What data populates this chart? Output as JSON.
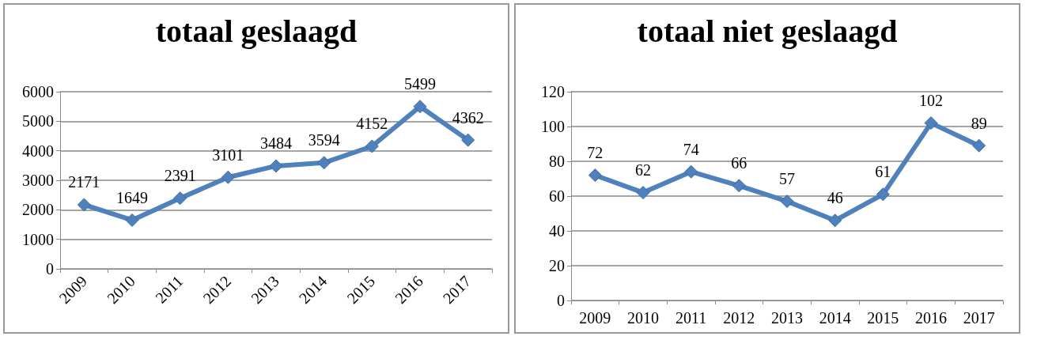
{
  "chart_data": [
    {
      "type": "line",
      "title": "totaal geslaagd",
      "categories": [
        "2009",
        "2010",
        "2011",
        "2012",
        "2013",
        "2014",
        "2015",
        "2016",
        "2017"
      ],
      "series": [
        {
          "color": "#4f81bd",
          "values": [
            2171,
            1649,
            2391,
            3101,
            3484,
            3594,
            4152,
            5499,
            4362
          ]
        }
      ],
      "ylim": [
        0,
        6000
      ],
      "yticks": [
        0,
        1000,
        2000,
        3000,
        4000,
        5000,
        6000
      ],
      "grid": "y",
      "marker": "diamond",
      "line_style": "solid",
      "data_labels": true
    },
    {
      "type": "line",
      "title": "totaal niet geslaagd",
      "categories": [
        "2009",
        "2010",
        "2011",
        "2012",
        "2013",
        "2014",
        "2015",
        "2016",
        "2017"
      ],
      "series": [
        {
          "color": "#4f81bd",
          "values": [
            72,
            62,
            74,
            66,
            57,
            46,
            61,
            102,
            89
          ]
        }
      ],
      "ylim": [
        0,
        120
      ],
      "yticks": [
        0,
        20,
        40,
        60,
        80,
        100,
        120
      ],
      "grid": "y",
      "marker": "diamond",
      "line_style": "solid",
      "data_labels": true
    }
  ]
}
